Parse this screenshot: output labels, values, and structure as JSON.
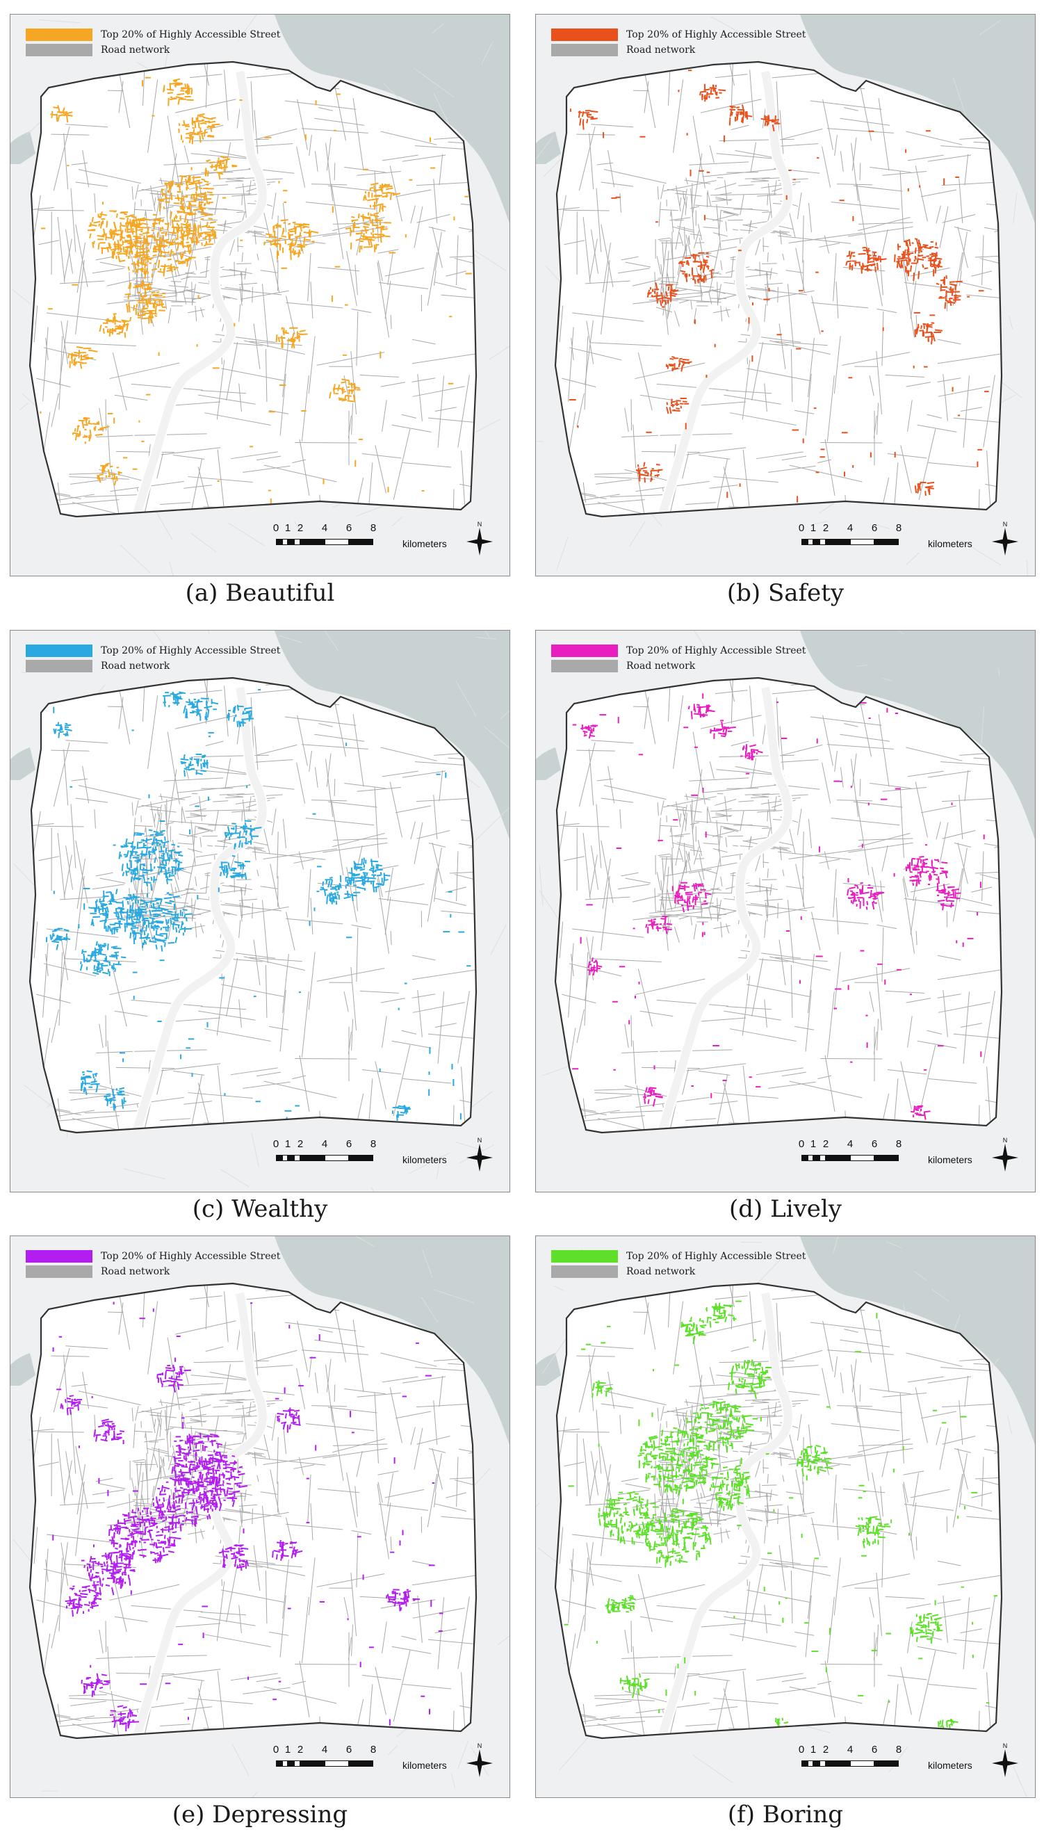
{
  "legend": {
    "highlight_label": "Top 20% of Highly Accessible Street",
    "road_label": "Road network",
    "road_color": "#a9a9a9"
  },
  "scale": {
    "ticks": [
      "0",
      "1",
      "2",
      "4",
      "6",
      "8"
    ],
    "unit": "kilometers"
  },
  "north_label": "N",
  "colors": {
    "water": "#c9d2d2",
    "land_outside": "#eef0f1",
    "land_inside": "#ffffff",
    "boundary": "#333333"
  },
  "panels": [
    {
      "id": "a",
      "caption": "(a) Beautiful",
      "color": "#f5a623"
    },
    {
      "id": "b",
      "caption": "(b) Safety",
      "color": "#e8501c"
    },
    {
      "id": "c",
      "caption": "(c) Wealthy",
      "color": "#29a9e0"
    },
    {
      "id": "d",
      "caption": "(d) Lively",
      "color": "#e81ec0"
    },
    {
      "id": "e",
      "caption": "(e) Depressing",
      "color": "#b31ef0"
    },
    {
      "id": "f",
      "caption": "(f) Boring",
      "color": "#5ee02a"
    }
  ]
}
